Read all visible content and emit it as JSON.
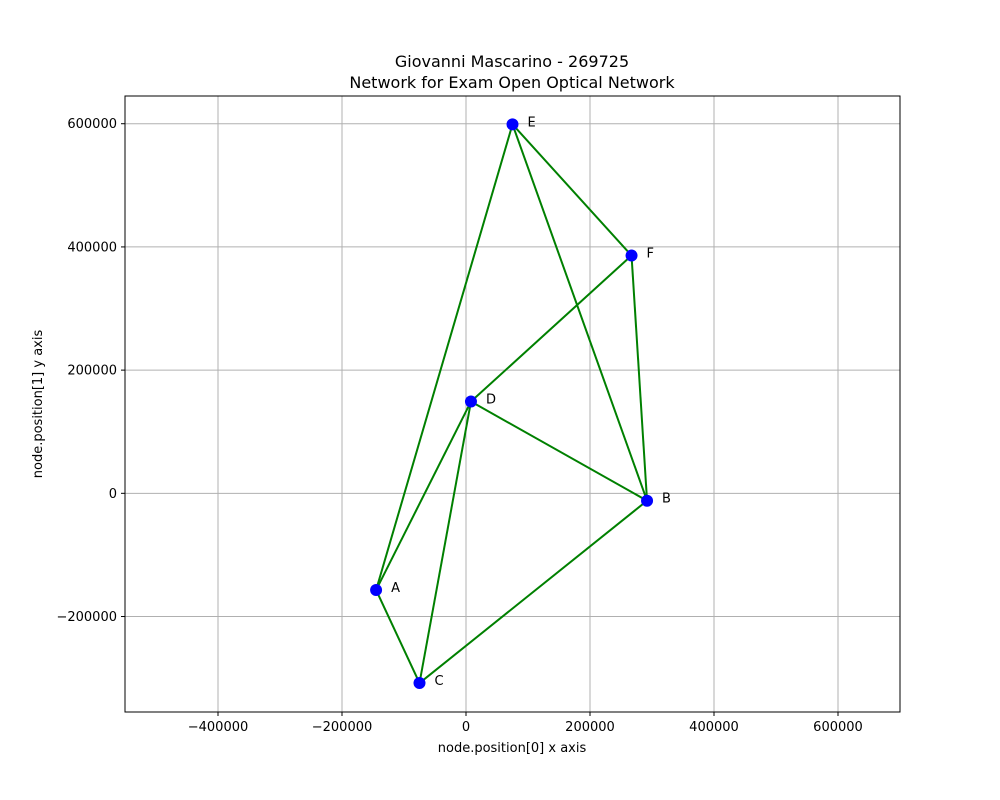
{
  "chart_data": {
    "type": "scatter",
    "title": "Giovanni Mascarino - 269725",
    "subtitle": "Network for Exam Open Optical Network",
    "xlabel": "node.position[0] x axis",
    "ylabel": "node.position[1] y axis",
    "xlim": [
      -550000,
      700000
    ],
    "ylim": [
      -355000,
      645000
    ],
    "xticks": [
      -400000,
      -200000,
      0,
      200000,
      400000,
      600000
    ],
    "xtick_labels": [
      "−400000",
      "−200000",
      "0",
      "200000",
      "400000",
      "600000"
    ],
    "yticks": [
      -200000,
      0,
      200000,
      400000,
      600000
    ],
    "ytick_labels": [
      "−200000",
      "0",
      "200000",
      "400000",
      "600000"
    ],
    "grid": true,
    "node_color": "#0000ff",
    "edge_color": "#008000",
    "nodes": [
      {
        "label": "A",
        "x": -145000,
        "y": -157000
      },
      {
        "label": "B",
        "x": 292000,
        "y": -12000
      },
      {
        "label": "C",
        "x": -75000,
        "y": -308000
      },
      {
        "label": "D",
        "x": 8000,
        "y": 149000
      },
      {
        "label": "E",
        "x": 75000,
        "y": 599000
      },
      {
        "label": "F",
        "x": 267000,
        "y": 386000
      }
    ],
    "edges": [
      [
        "A",
        "C"
      ],
      [
        "A",
        "D"
      ],
      [
        "A",
        "E"
      ],
      [
        "B",
        "C"
      ],
      [
        "B",
        "D"
      ],
      [
        "B",
        "E"
      ],
      [
        "B",
        "F"
      ],
      [
        "C",
        "D"
      ],
      [
        "D",
        "F"
      ],
      [
        "E",
        "F"
      ]
    ]
  }
}
